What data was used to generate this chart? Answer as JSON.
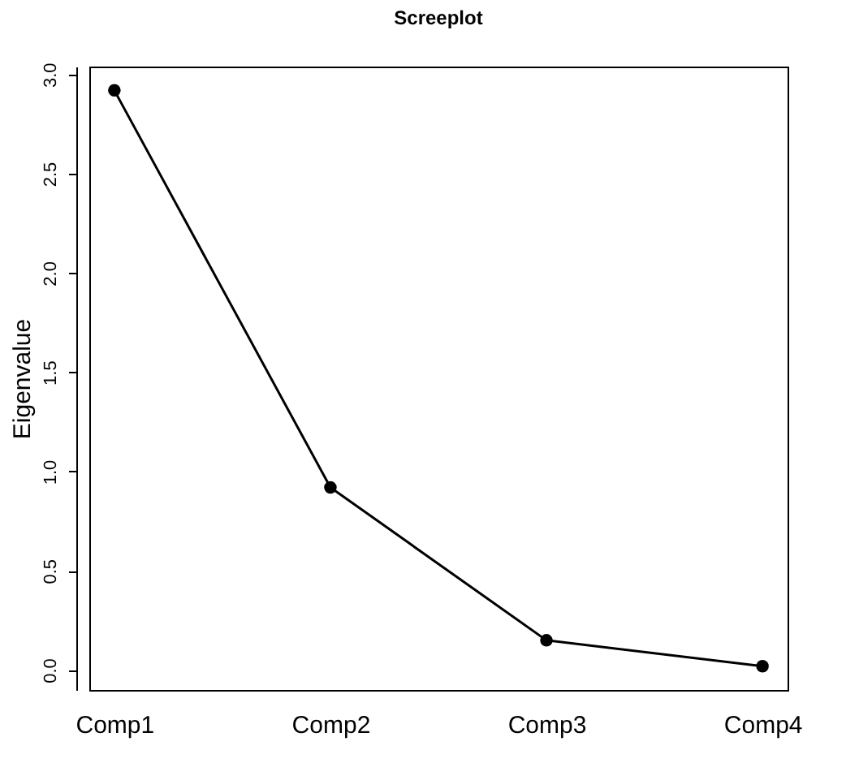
{
  "chart_data": {
    "type": "line",
    "title": "Screeplot",
    "ylabel": "Eigenvalue",
    "categories": [
      "Comp1",
      "Comp2",
      "Comp3",
      "Comp4"
    ],
    "series": [
      {
        "color": "#000000",
        "values": [
          2.92,
          0.92,
          0.15,
          0.02
        ]
      }
    ],
    "ylim": [
      -0.1,
      3.04
    ],
    "yticks": [
      {
        "value": 0,
        "label": "0.0"
      },
      0.5,
      {
        "value": 1,
        "label": "1.0"
      },
      1.5,
      {
        "value": 2,
        "label": "2.0"
      },
      2.5,
      {
        "value": 3,
        "label": "3.0"
      }
    ],
    "grid": false,
    "marker": "circle",
    "line_style": "solid"
  }
}
